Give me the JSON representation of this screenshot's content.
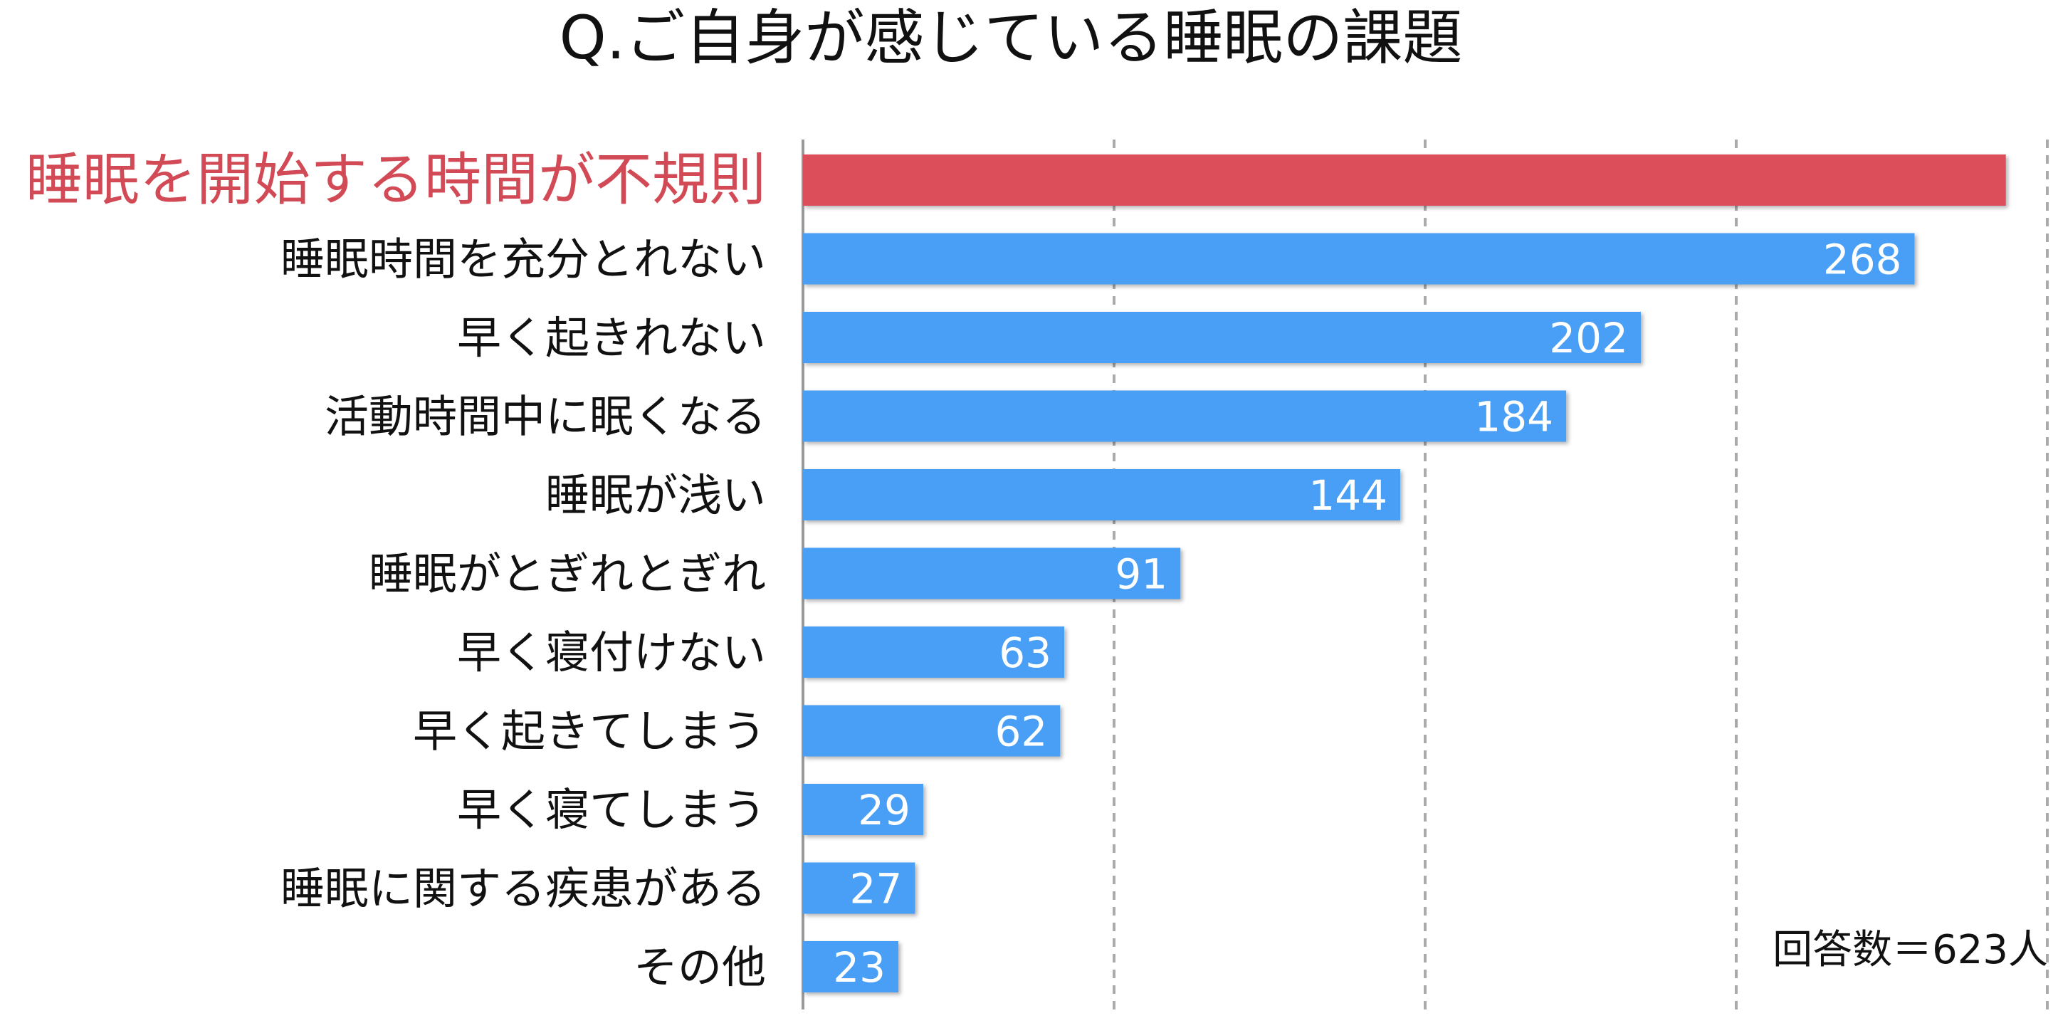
{
  "chart_data": {
    "type": "bar",
    "orientation": "horizontal",
    "title": "Q.ご自身が感じている睡眠の課題",
    "categories": [
      "睡眠を開始する時間が不規則",
      "睡眠時間を充分とれない",
      "早く起きれない",
      "活動時間中に眠くなる",
      "睡眠が浅い",
      "睡眠がとぎれとぎれ",
      "早く寝付けない",
      "早く起きてしまう",
      "早く寝てしまう",
      "睡眠に関する疾患がある",
      "その他"
    ],
    "values": [
      290,
      268,
      202,
      184,
      144,
      91,
      63,
      62,
      29,
      27,
      23
    ],
    "value_labels": [
      "",
      "268",
      "202",
      "184",
      "144",
      "91",
      "63",
      "62",
      "29",
      "27",
      "23"
    ],
    "highlight_index": 0,
    "colors": {
      "highlight": "#dc505a",
      "bar": "#4a9ff5",
      "highlight_label": "#d14a55",
      "label": "#111111",
      "value_label": "#ffffff",
      "grid": "#aaaaaa",
      "axis": "#999999"
    },
    "xlim": [
      0,
      300
    ],
    "x_gridlines": [
      75,
      150,
      225,
      300
    ],
    "grid": true,
    "legend": "none",
    "annotation": "回答数＝623人"
  }
}
